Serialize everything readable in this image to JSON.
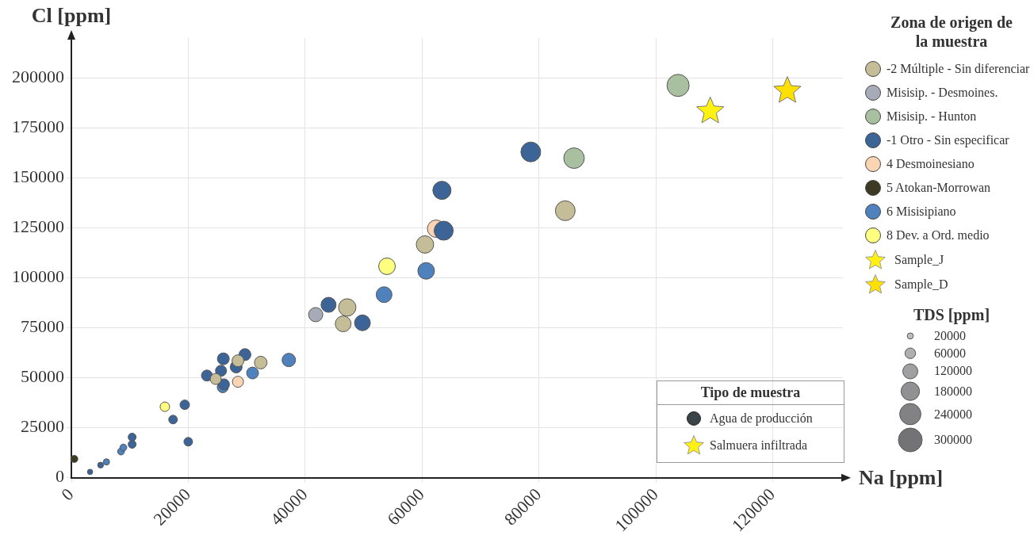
{
  "chart_data": {
    "type": "bubble",
    "xlabel": "Na [ppm]",
    "ylabel": "Cl [ppm]",
    "legend_title": "Zona de origen de la muestra",
    "legend": "right",
    "grid": true,
    "xlim": [
      0,
      132000
    ],
    "xticks": [
      0,
      20000,
      40000,
      60000,
      80000,
      100000,
      120000
    ],
    "ylim": [
      0,
      220000
    ],
    "yticks": [
      0,
      25000,
      50000,
      75000,
      100000,
      125000,
      150000,
      175000,
      200000
    ],
    "size_legend": [
      20000,
      60000,
      120000,
      180000,
      240000,
      300000
    ],
    "annotations": [
      "TDS [ppm]",
      "Tipo de muestra",
      "Agua de producción",
      "Salmuera infiltrada"
    ],
    "series": [
      {
        "name": "-2 Múltiple - Sin diferenciar",
        "color": "#c4bd97",
        "marker": "circle",
        "x": [
          24700,
          28500,
          32400,
          47200,
          46500,
          60500,
          84500
        ],
        "values": [
          49400,
          58500,
          57600,
          85200,
          77000,
          116700,
          133600
        ],
        "sizes": [
          65000,
          75000,
          85000,
          161000,
          133000,
          161000,
          208000
        ]
      },
      {
        "name": "Misisip. - Desmoines.",
        "color": "#a6abb7",
        "marker": "circle",
        "x": [
          41800
        ],
        "values": [
          81600
        ],
        "sizes": [
          108000
        ]
      },
      {
        "name": "Misisip. - Hunton",
        "color": "#a8c09f",
        "marker": "circle",
        "x": [
          86000,
          103800
        ],
        "values": [
          159900,
          196300
        ],
        "sizes": [
          225000,
          261000
        ]
      },
      {
        "name": "-1 Otro - Sin especificar",
        "color": "#3c6496",
        "marker": "circle",
        "x": [
          3200,
          5000,
          10400,
          10400,
          17400,
          19400,
          20000,
          23200,
          25600,
          26100,
          26000,
          28200,
          29700,
          44000,
          49800,
          63700,
          63400,
          78600
        ],
        "values": [
          2900,
          6300,
          16700,
          20300,
          29100,
          36500,
          18000,
          51100,
          53500,
          46700,
          59500,
          55400,
          61600,
          86500,
          77500,
          123600,
          143800,
          163000
        ],
        "sizes": [
          15000,
          18000,
          33000,
          33000,
          40000,
          48000,
          40000,
          65000,
          65000,
          65000,
          75000,
          75000,
          75000,
          120000,
          133000,
          192000,
          176000,
          208000
        ]
      },
      {
        "name": "4 Desmoinesiano",
        "color": "#fbd4b4",
        "marker": "circle",
        "x": [
          28500,
          62400
        ],
        "values": [
          48000,
          124600
        ],
        "sizes": [
          65000,
          161000
        ]
      },
      {
        "name": "5 Atokan-Morrowan",
        "color": "#3d3a24",
        "marker": "circle",
        "x": [
          500
        ],
        "values": [
          9400
        ],
        "sizes": [
          27000
        ]
      },
      {
        "name": "6 Misisipiano",
        "color": "#4f81bd",
        "marker": "circle",
        "x": [
          6000,
          8500,
          8900,
          25900,
          31000,
          37200,
          53500,
          60700
        ],
        "values": [
          7900,
          13100,
          15100,
          45300,
          52400,
          58900,
          91600,
          103500
        ],
        "sizes": [
          21000,
          25000,
          25000,
          65000,
          75000,
          96000,
          133000,
          147000
        ]
      },
      {
        "name": "8 Dev. a Ord. medio",
        "color": "#ffff80",
        "marker": "circle",
        "x": [
          16000,
          54000
        ],
        "values": [
          35500,
          105800
        ],
        "sizes": [
          48000,
          147000
        ]
      },
      {
        "name": "Sample_J",
        "type": "scatter",
        "color": "#fff212",
        "marker": "star",
        "x": [
          109300
        ],
        "values": [
          183400
        ]
      },
      {
        "name": "Sample_D",
        "type": "scatter",
        "color": "#ffe000",
        "marker": "star",
        "x": [
          122500
        ],
        "values": [
          193600
        ]
      }
    ]
  }
}
